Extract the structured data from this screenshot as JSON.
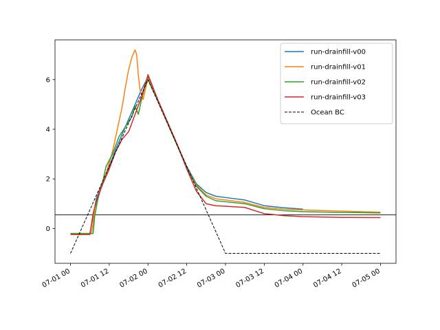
{
  "chart_data": {
    "type": "line",
    "title": "",
    "xlabel": "",
    "ylabel": "",
    "xlim": [
      "2023-06-30 19:12",
      "2023-07-05 04:48"
    ],
    "ylim": [
      -1.4,
      7.6
    ],
    "x_ticks": [
      "07-01 00",
      "07-01 12",
      "07-02 00",
      "07-02 12",
      "07-03 00",
      "07-03 12",
      "07-04 00",
      "07-04 12",
      "07-05 00"
    ],
    "y_ticks": [
      "0",
      "2",
      "4",
      "6"
    ],
    "hline": 0.55,
    "legend_position": "upper right",
    "grid": false,
    "series": [
      {
        "name": "run-drainfill-v00",
        "color": "#1f77b4",
        "style": "solid",
        "points": [
          [
            "2023-07-01 00:00",
            -0.22
          ],
          [
            "2023-07-01 06:00",
            -0.22
          ],
          [
            "2023-07-01 07:00",
            0.5
          ],
          [
            "2023-07-01 08:00",
            1.2
          ],
          [
            "2023-07-01 10:00",
            1.9
          ],
          [
            "2023-07-01 12:00",
            2.5
          ],
          [
            "2023-07-01 14:00",
            3.2
          ],
          [
            "2023-07-01 16:00",
            3.8
          ],
          [
            "2023-07-01 18:00",
            4.4
          ],
          [
            "2023-07-01 20:00",
            5.0
          ],
          [
            "2023-07-01 22:00",
            5.6
          ],
          [
            "2023-07-02 00:00",
            6.1
          ],
          [
            "2023-07-02 03:00",
            5.2
          ],
          [
            "2023-07-02 06:00",
            4.3
          ],
          [
            "2023-07-02 09:00",
            3.4
          ],
          [
            "2023-07-02 12:00",
            2.5
          ],
          [
            "2023-07-02 15:00",
            1.8
          ],
          [
            "2023-07-02 18:00",
            1.45
          ],
          [
            "2023-07-02 21:00",
            1.3
          ],
          [
            "2023-07-03 00:00",
            1.25
          ],
          [
            "2023-07-03 06:00",
            1.15
          ],
          [
            "2023-07-03 12:00",
            0.92
          ],
          [
            "2023-07-03 18:00",
            0.84
          ],
          [
            "2023-07-04 00:00",
            0.78
          ]
        ]
      },
      {
        "name": "run-drainfill-v01",
        "color": "#ff7f0e",
        "style": "solid",
        "points": [
          [
            "2023-07-01 00:00",
            -0.2
          ],
          [
            "2023-07-01 06:30",
            -0.2
          ],
          [
            "2023-07-01 07:00",
            0.2
          ],
          [
            "2023-07-01 07:30",
            0.8
          ],
          [
            "2023-07-01 09:00",
            1.5
          ],
          [
            "2023-07-01 11:00",
            2.2
          ],
          [
            "2023-07-01 13:00",
            3.1
          ],
          [
            "2023-07-01 14:00",
            3.7
          ],
          [
            "2023-07-01 15:00",
            4.3
          ],
          [
            "2023-07-01 16:00",
            4.9
          ],
          [
            "2023-07-01 17:00",
            5.7
          ],
          [
            "2023-07-01 18:00",
            6.4
          ],
          [
            "2023-07-01 19:00",
            6.9
          ],
          [
            "2023-07-01 20:00",
            7.2
          ],
          [
            "2023-07-01 20:30",
            7.0
          ],
          [
            "2023-07-01 21:00",
            6.2
          ],
          [
            "2023-07-01 21:30",
            5.6
          ],
          [
            "2023-07-01 22:30",
            5.2
          ],
          [
            "2023-07-01 23:00",
            5.5
          ],
          [
            "2023-07-02 00:00",
            6.05
          ],
          [
            "2023-07-02 03:00",
            5.2
          ],
          [
            "2023-07-02 06:00",
            4.3
          ],
          [
            "2023-07-02 09:00",
            3.4
          ],
          [
            "2023-07-02 12:00",
            2.45
          ],
          [
            "2023-07-02 15:00",
            1.75
          ],
          [
            "2023-07-02 18:00",
            1.35
          ],
          [
            "2023-07-02 21:00",
            1.2
          ],
          [
            "2023-07-03 00:00",
            1.15
          ],
          [
            "2023-07-03 06:00",
            1.05
          ],
          [
            "2023-07-03 12:00",
            0.85
          ],
          [
            "2023-07-03 18:00",
            0.78
          ],
          [
            "2023-07-04 00:00",
            0.75
          ],
          [
            "2023-07-04 12:00",
            0.7
          ],
          [
            "2023-07-05 00:00",
            0.66
          ]
        ]
      },
      {
        "name": "run-drainfill-v02",
        "color": "#2ca02c",
        "style": "solid",
        "points": [
          [
            "2023-07-01 00:00",
            -0.2
          ],
          [
            "2023-07-01 07:00",
            -0.2
          ],
          [
            "2023-07-01 07:30",
            0.5
          ],
          [
            "2023-07-01 08:30",
            1.2
          ],
          [
            "2023-07-01 10:00",
            1.9
          ],
          [
            "2023-07-01 11:00",
            2.5
          ],
          [
            "2023-07-01 13:00",
            3.0
          ],
          [
            "2023-07-01 15:00",
            3.7
          ],
          [
            "2023-07-01 17:00",
            4.1
          ],
          [
            "2023-07-01 19:00",
            4.5
          ],
          [
            "2023-07-01 20:00",
            4.95
          ],
          [
            "2023-07-01 21:00",
            4.6
          ],
          [
            "2023-07-01 22:00",
            5.2
          ],
          [
            "2023-07-01 23:00",
            5.7
          ],
          [
            "2023-07-02 00:00",
            6.0
          ],
          [
            "2023-07-02 03:00",
            5.15
          ],
          [
            "2023-07-02 06:00",
            4.25
          ],
          [
            "2023-07-02 09:00",
            3.35
          ],
          [
            "2023-07-02 12:00",
            2.45
          ],
          [
            "2023-07-02 15:00",
            1.7
          ],
          [
            "2023-07-02 18:00",
            1.3
          ],
          [
            "2023-07-02 21:00",
            1.12
          ],
          [
            "2023-07-03 00:00",
            1.08
          ],
          [
            "2023-07-03 06:00",
            1.0
          ],
          [
            "2023-07-03 12:00",
            0.8
          ],
          [
            "2023-07-03 18:00",
            0.72
          ],
          [
            "2023-07-04 00:00",
            0.68
          ],
          [
            "2023-07-04 12:00",
            0.65
          ],
          [
            "2023-07-05 00:00",
            0.63
          ]
        ]
      },
      {
        "name": "run-drainfill-v03",
        "color": "#d62728",
        "style": "solid",
        "points": [
          [
            "2023-07-01 00:00",
            -0.24
          ],
          [
            "2023-07-01 06:00",
            -0.24
          ],
          [
            "2023-07-01 07:00",
            0.6
          ],
          [
            "2023-07-01 08:00",
            1.1
          ],
          [
            "2023-07-01 10:00",
            1.8
          ],
          [
            "2023-07-01 12:00",
            2.4
          ],
          [
            "2023-07-01 14:00",
            3.1
          ],
          [
            "2023-07-01 16:00",
            3.6
          ],
          [
            "2023-07-01 18:00",
            3.9
          ],
          [
            "2023-07-01 20:00",
            4.6
          ],
          [
            "2023-07-01 22:00",
            5.3
          ],
          [
            "2023-07-02 00:00",
            6.2
          ],
          [
            "2023-07-02 03:00",
            5.2
          ],
          [
            "2023-07-02 06:00",
            4.3
          ],
          [
            "2023-07-02 09:00",
            3.4
          ],
          [
            "2023-07-02 12:00",
            2.4
          ],
          [
            "2023-07-02 15:00",
            1.5
          ],
          [
            "2023-07-02 18:00",
            1.0
          ],
          [
            "2023-07-02 21:00",
            0.92
          ],
          [
            "2023-07-03 00:00",
            0.9
          ],
          [
            "2023-07-03 06:00",
            0.85
          ],
          [
            "2023-07-03 12:00",
            0.6
          ],
          [
            "2023-07-03 18:00",
            0.52
          ],
          [
            "2023-07-04 00:00",
            0.48
          ],
          [
            "2023-07-04 12:00",
            0.45
          ],
          [
            "2023-07-05 00:00",
            0.44
          ]
        ]
      },
      {
        "name": "Ocean BC",
        "color": "#000000",
        "style": "dashed",
        "points": [
          [
            "2023-07-01 00:00",
            -1.0
          ],
          [
            "2023-07-02 00:00",
            6.0
          ],
          [
            "2023-07-03 00:00",
            -1.0
          ],
          [
            "2023-07-05 00:00",
            -1.0
          ]
        ]
      }
    ]
  }
}
